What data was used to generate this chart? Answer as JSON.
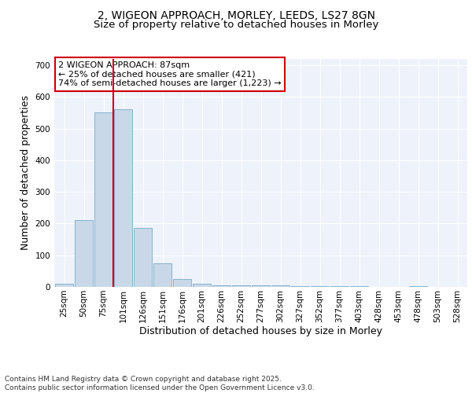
{
  "title_line1": "2, WIGEON APPROACH, MORLEY, LEEDS, LS27 8GN",
  "title_line2": "Size of property relative to detached houses in Morley",
  "xlabel": "Distribution of detached houses by size in Morley",
  "ylabel": "Number of detached properties",
  "categories": [
    "25sqm",
    "50sqm",
    "75sqm",
    "101sqm",
    "126sqm",
    "151sqm",
    "176sqm",
    "201sqm",
    "226sqm",
    "252sqm",
    "277sqm",
    "302sqm",
    "327sqm",
    "352sqm",
    "377sqm",
    "403sqm",
    "428sqm",
    "453sqm",
    "478sqm",
    "503sqm",
    "528sqm"
  ],
  "values": [
    10,
    210,
    550,
    560,
    185,
    75,
    25,
    10,
    5,
    5,
    5,
    5,
    3,
    2,
    2,
    2,
    0,
    0,
    2,
    0,
    0
  ],
  "bar_color": "#c8d8e8",
  "bar_edge_color": "#7aaac8",
  "vline_color": "#cc0000",
  "vline_x": 2.5,
  "annotation_text": "2 WIGEON APPROACH: 87sqm\n← 25% of detached houses are smaller (421)\n74% of semi-detached houses are larger (1,223) →",
  "annotation_box_color": "#cc0000",
  "ylim": [
    0,
    720
  ],
  "yticks": [
    0,
    100,
    200,
    300,
    400,
    500,
    600,
    700
  ],
  "footnote": "Contains HM Land Registry data © Crown copyright and database right 2025.\nContains public sector information licensed under the Open Government Licence v3.0.",
  "background_color": "#eef2fb",
  "grid_color": "#ffffff",
  "title_fontsize": 10,
  "subtitle_fontsize": 9.5,
  "axis_label_fontsize": 9,
  "tick_fontsize": 7.5,
  "annotation_fontsize": 8,
  "footnote_fontsize": 6.5
}
